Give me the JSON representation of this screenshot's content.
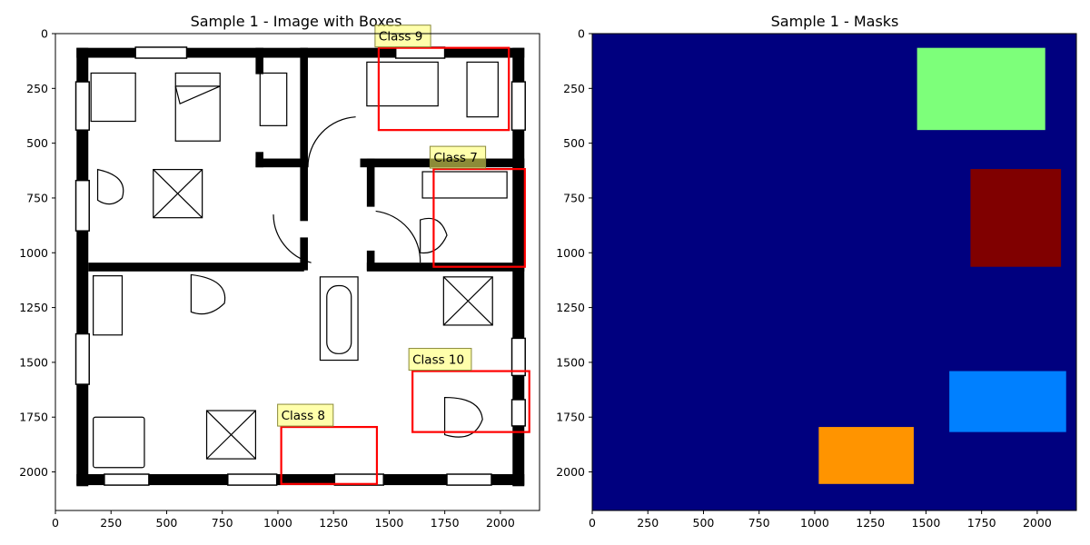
{
  "chart_data": [
    {
      "type": "image",
      "title": "Sample 1 - Image with Boxes",
      "xlim": [
        0,
        2176
      ],
      "ylim": [
        2176,
        0
      ],
      "xticks": [
        0,
        250,
        500,
        750,
        1000,
        1250,
        1500,
        1750,
        2000
      ],
      "yticks": [
        0,
        250,
        500,
        750,
        1000,
        1250,
        1500,
        1750,
        2000
      ],
      "grid": false,
      "boxes": [
        {
          "label": "Class 9",
          "x0": 1453,
          "y0": 65,
          "x1": 2038,
          "y1": 440,
          "color": "#ff0000"
        },
        {
          "label": "Class 7",
          "x0": 1700,
          "y0": 618,
          "x1": 2110,
          "y1": 1064,
          "color": "#ff0000"
        },
        {
          "label": "Class 10",
          "x0": 1605,
          "y0": 1540,
          "x1": 2130,
          "y1": 1818,
          "color": "#ff0000"
        },
        {
          "label": "Class 8",
          "x0": 1015,
          "y0": 1795,
          "x1": 1445,
          "y1": 2055,
          "color": "#ff0000"
        }
      ]
    },
    {
      "type": "heatmap",
      "title": "Sample 1 - Masks",
      "xlim": [
        0,
        2176
      ],
      "ylim": [
        2176,
        0
      ],
      "xticks": [
        0,
        250,
        500,
        750,
        1000,
        1250,
        1500,
        1750,
        2000
      ],
      "yticks": [
        0,
        250,
        500,
        750,
        1000,
        1250,
        1500,
        1750,
        2000
      ],
      "grid": false,
      "colormap": "jet",
      "background_color": "#00007f",
      "regions": [
        {
          "class": 9,
          "x0": 1460,
          "y0": 65,
          "x1": 2036,
          "y1": 440,
          "color": "#7dff7a"
        },
        {
          "class": 7,
          "x0": 1700,
          "y0": 618,
          "x1": 2107,
          "y1": 1064,
          "color": "#800000"
        },
        {
          "class": 10,
          "x0": 1605,
          "y0": 1540,
          "x1": 2130,
          "y1": 1818,
          "color": "#0080ff"
        },
        {
          "class": 8,
          "x0": 1018,
          "y0": 1795,
          "x1": 1445,
          "y1": 2055,
          "color": "#ff9400"
        }
      ]
    }
  ]
}
